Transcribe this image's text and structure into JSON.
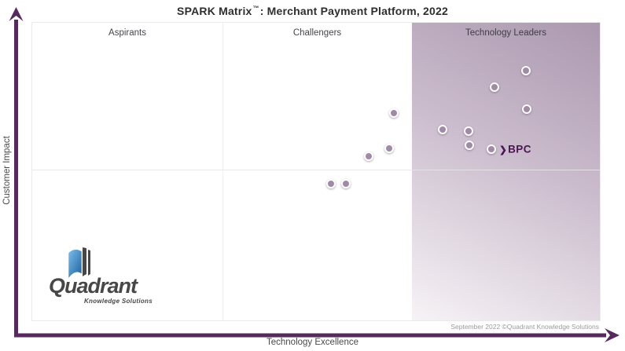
{
  "title": {
    "brand": "SPARK Matrix",
    "trademark": "™",
    "rest": ": Merchant Payment Platform, 2022"
  },
  "footnote": "September 2022 ©Quadrant Knowledge Solutions",
  "logo": {
    "name": "Quadrant",
    "subtitle": "Knowledge Solutions"
  },
  "bpc": {
    "label": "BPC",
    "chevron_icon": "❯"
  },
  "colors": {
    "axis": "#572a5e",
    "dot_fill": "#a18aa5",
    "bpc": "#4a1550",
    "leaders_gradient_top": "#ab98af",
    "leaders_gradient_mid": "#cbbccd",
    "leaders_gradient_bottom": "#f6f3f6",
    "logo_blue_light": "#7cc0ea",
    "logo_blue_dark": "#1a5d9f",
    "logo_gray": "#474747"
  },
  "chart_data": {
    "type": "scatter",
    "title": "SPARK Matrix™: Merchant Payment Platform, 2022",
    "xlabel": "Technology Excellence",
    "ylabel": "Customer Impact",
    "x_range": [
      0,
      100
    ],
    "y_range": [
      0,
      100
    ],
    "grid": "quadrant lines only",
    "legend": "none",
    "quadrant_labels": [
      "Aspirants",
      "Challengers",
      "Technology Leaders"
    ],
    "quadrant_boundaries": {
      "vertical_x": [
        33.5,
        66.9
      ],
      "horizontal_y": 50.7
    },
    "points": [
      {
        "x": 87.0,
        "y": 83.9,
        "label": "",
        "quadrant": "Technology Leaders"
      },
      {
        "x": 81.4,
        "y": 78.4,
        "label": "",
        "quadrant": "Technology Leaders"
      },
      {
        "x": 87.1,
        "y": 71.0,
        "label": "",
        "quadrant": "Technology Leaders"
      },
      {
        "x": 72.3,
        "y": 64.1,
        "label": "",
        "quadrant": "Technology Leaders"
      },
      {
        "x": 76.9,
        "y": 63.6,
        "label": "",
        "quadrant": "Technology Leaders"
      },
      {
        "x": 77.0,
        "y": 58.8,
        "label": "",
        "quadrant": "Technology Leaders"
      },
      {
        "x": 80.9,
        "y": 57.5,
        "label": "BPC",
        "quadrant": "Technology Leaders"
      },
      {
        "x": 63.7,
        "y": 69.7,
        "label": "",
        "quadrant": "Challengers"
      },
      {
        "x": 62.9,
        "y": 57.8,
        "label": "",
        "quadrant": "Challengers"
      },
      {
        "x": 59.3,
        "y": 55.1,
        "label": "",
        "quadrant": "Challengers"
      },
      {
        "x": 52.6,
        "y": 45.9,
        "label": "",
        "quadrant": "Challengers"
      },
      {
        "x": 55.3,
        "y": 45.9,
        "label": "",
        "quadrant": "Challengers"
      }
    ]
  }
}
